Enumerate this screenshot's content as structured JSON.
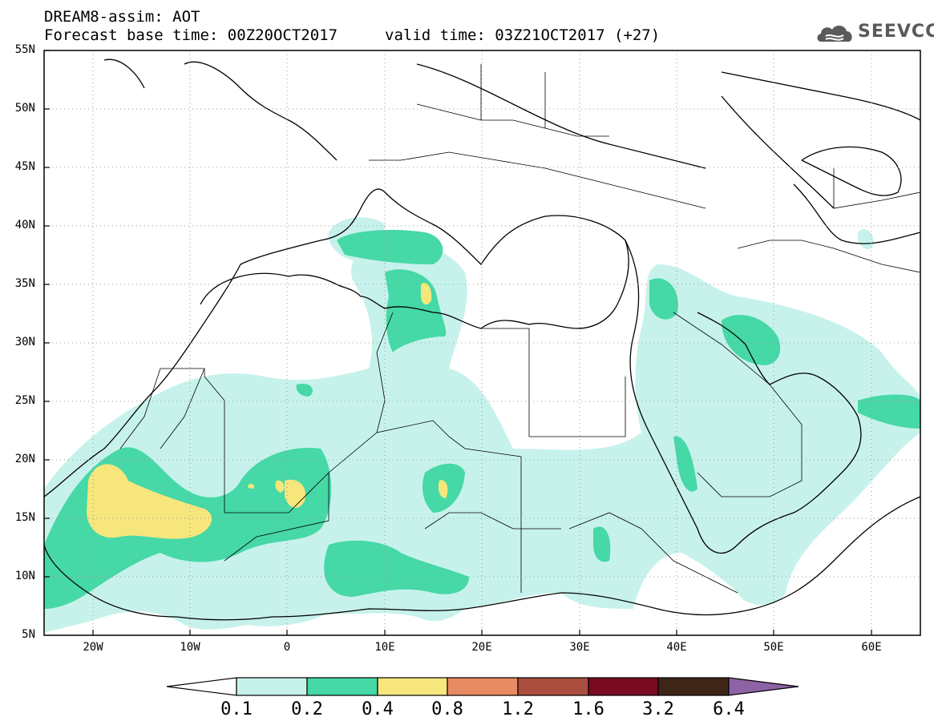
{
  "header": {
    "line1": "DREAM8-assim: AOT",
    "line2": "Forecast base time: 00Z20OCT2017",
    "valid": "valid time: 03Z21OCT2017 (+27)"
  },
  "logo": {
    "text": "SEEVCCC",
    "icon": "cloud-logo-icon"
  },
  "map": {
    "lon_range": [
      -25,
      65
    ],
    "lat_range": [
      5,
      55
    ],
    "lat_ticks": [
      "55N",
      "50N",
      "45N",
      "40N",
      "35N",
      "30N",
      "25N",
      "20N",
      "15N",
      "10N",
      "5N"
    ],
    "lon_ticks": [
      "20W",
      "10W",
      "0",
      "10E",
      "20E",
      "30E",
      "40E",
      "50E",
      "60E"
    ],
    "gridlines": "dotted"
  },
  "colorbar": {
    "levels": [
      "0.1",
      "0.2",
      "0.4",
      "0.8",
      "1.2",
      "1.6",
      "3.2",
      "6.4"
    ],
    "colors": [
      "#ffffff",
      "#c7f2ec",
      "#46d8a6",
      "#f6e67c",
      "#e98b62",
      "#ab4e3f",
      "#7a0a22",
      "#3d2618",
      "#8e63a5"
    ]
  }
}
